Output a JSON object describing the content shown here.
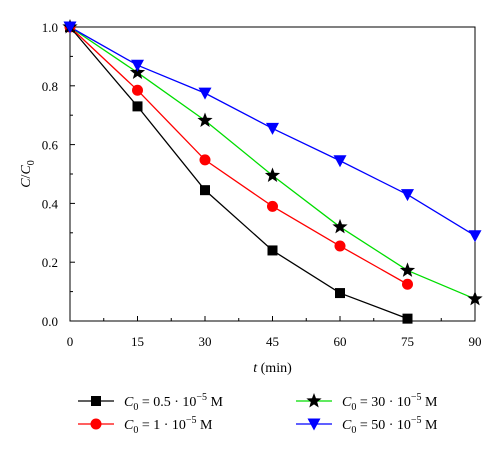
{
  "chart_data": {
    "type": "line",
    "x": [
      0,
      15,
      30,
      45,
      60,
      75,
      90
    ],
    "xlim": [
      0,
      90
    ],
    "ylim": [
      0,
      1.0
    ],
    "xticks": [
      "0",
      "15",
      "30",
      "45",
      "60",
      "75",
      "90"
    ],
    "yticks": [
      "0.0",
      "0.2",
      "0.4",
      "0.6",
      "0.8",
      "1.0"
    ],
    "xlabel": {
      "italic": "t",
      "rest": " (min)"
    },
    "ylabel": {
      "italic": "C",
      "slash": "/",
      "italic2": "C",
      "sub": "0"
    },
    "grid": false,
    "legend_position": "bottom",
    "series": [
      {
        "label": {
          "var": "C",
          "sub": "0",
          "text": " = 0.5 · 10",
          "sup": "−5",
          "unit": " M"
        },
        "marker": "square",
        "color": "#000000",
        "marker_color": "#000000",
        "x": [
          0,
          15,
          30,
          45,
          60,
          75
        ],
        "values": [
          1.0,
          0.73,
          0.445,
          0.24,
          0.095,
          0.008
        ]
      },
      {
        "label": {
          "var": "C",
          "sub": "0",
          "text": " = 1 · 10",
          "sup": "−5",
          "unit": " M"
        },
        "marker": "circle",
        "color": "#ff0000",
        "marker_color": "#ff0000",
        "x": [
          0,
          15,
          30,
          45,
          60,
          75
        ],
        "values": [
          1.0,
          0.785,
          0.548,
          0.39,
          0.255,
          0.125
        ]
      },
      {
        "label": {
          "var": "C",
          "sub": "0",
          "text": " = 30 · 10",
          "sup": "−5",
          "unit": " M"
        },
        "marker": "star",
        "color": "#00dd00",
        "marker_color": "#000000",
        "x": [
          0,
          15,
          30,
          45,
          60,
          75,
          90
        ],
        "values": [
          1.0,
          0.845,
          0.682,
          0.495,
          0.32,
          0.172,
          0.075
        ]
      },
      {
        "label": {
          "var": "C",
          "sub": "0",
          "text": " = 50 · 10",
          "sup": "−5",
          "unit": " M"
        },
        "marker": "triangle-down",
        "color": "#0000ff",
        "marker_color": "#0000ff",
        "x": [
          0,
          15,
          30,
          45,
          60,
          75,
          90
        ],
        "values": [
          1.0,
          0.87,
          0.775,
          0.655,
          0.545,
          0.43,
          0.29
        ]
      }
    ]
  }
}
